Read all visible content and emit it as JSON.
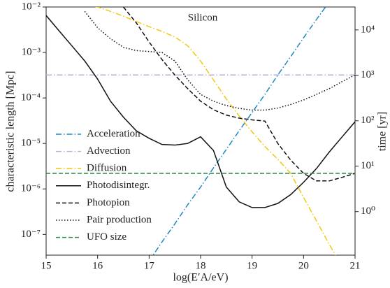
{
  "chart_data": {
    "type": "line",
    "annotation": "Silicon",
    "xlabel": "log(E′A/eV)",
    "ylabel": "characteristic length [Mpc]",
    "y2label": "time [yr]",
    "log_y": true,
    "legend": "lower left",
    "x": [
      15,
      15.25,
      15.5,
      15.75,
      16,
      16.25,
      16.5,
      16.75,
      17,
      17.25,
      17.5,
      17.75,
      18,
      18.25,
      18.5,
      18.75,
      19,
      19.25,
      19.5,
      19.75,
      20,
      20.25,
      20.5,
      20.75,
      21
    ],
    "xlim": [
      15,
      21
    ],
    "xticks": [
      15,
      16,
      17,
      18,
      19,
      20,
      21
    ],
    "ylim": [
      3.5e-08,
      0.01
    ],
    "yticks": [
      {
        "value": 1e-07,
        "label": "10⁻⁷"
      },
      {
        "value": 1e-06,
        "label": "10⁻⁶"
      },
      {
        "value": 1e-05,
        "label": "10⁻⁵"
      },
      {
        "value": 0.0001,
        "label": "10⁻⁴"
      },
      {
        "value": 0.001,
        "label": "10⁻³"
      },
      {
        "value": 0.01,
        "label": "10⁻²"
      }
    ],
    "y2lim": [
      0.11,
      32000
    ],
    "y2ticks": [
      {
        "value": 1,
        "label": "10⁰"
      },
      {
        "value": 10,
        "label": "10¹"
      },
      {
        "value": 100,
        "label": "10²"
      },
      {
        "value": 1000,
        "label": "10³"
      },
      {
        "value": 10000,
        "label": "10⁴"
      }
    ],
    "series": [
      {
        "name": "Acceleration",
        "color": "#1f88c4",
        "linestyle": "dashdot",
        "values": [
          null,
          null,
          null,
          null,
          null,
          null,
          null,
          null,
          2.6e-08,
          6.8e-08,
          1.7e-07,
          4.5e-07,
          1.1e-06,
          2.9e-06,
          7.4e-06,
          1.9e-05,
          4.8e-05,
          0.00012,
          0.00032,
          0.00081,
          0.0021,
          0.0053,
          0.013,
          null,
          null
        ]
      },
      {
        "name": "Advection",
        "color": "#b3b3d9",
        "linestyle": "dashdot",
        "values": [
          0.00032,
          0.00032,
          0.00032,
          0.00032,
          0.00032,
          0.00032,
          0.00032,
          0.00032,
          0.00032,
          0.00032,
          0.00032,
          0.00032,
          0.00032,
          0.00032,
          0.00032,
          0.00032,
          0.00032,
          0.00032,
          0.00032,
          0.00032,
          0.00032,
          0.00032,
          0.00032,
          0.00032,
          0.00032
        ]
      },
      {
        "name": "Diffusion",
        "color": "#f2c811",
        "linestyle": "dashdot",
        "values": [
          null,
          null,
          null,
          0.011,
          0.01,
          0.008,
          0.0063,
          0.0048,
          0.0037,
          0.0029,
          0.0022,
          0.0014,
          0.00065,
          0.00025,
          9.5e-05,
          4e-05,
          1.8e-05,
          8.5e-06,
          4.5e-06,
          2.2e-06,
          6.5e-07,
          2e-07,
          6e-08,
          2e-08,
          null
        ]
      },
      {
        "name": "Photodisintegr.",
        "color": "#111111",
        "linestyle": "solid",
        "values": [
          0.0065,
          0.003,
          0.0014,
          0.00065,
          0.00026,
          8.5e-05,
          3.8e-05,
          1.9e-05,
          1.3e-05,
          9.5e-06,
          9.2e-06,
          1e-05,
          1.4e-05,
          7e-06,
          1.1e-06,
          5.2e-07,
          3.9e-07,
          3.9e-07,
          4.8e-07,
          7.5e-07,
          1.4e-06,
          2.8e-06,
          6.5e-06,
          1.4e-05,
          3e-05
        ]
      },
      {
        "name": "Photopion",
        "color": "#111111",
        "linestyle": "dashed",
        "values": [
          null,
          null,
          null,
          null,
          null,
          null,
          0.01,
          0.0045,
          0.0017,
          0.0007,
          0.00032,
          0.00016,
          8.5e-05,
          5.5e-05,
          4.2e-05,
          3.6e-05,
          3.3e-05,
          3.1e-05,
          1e-05,
          4.3e-06,
          2.2e-06,
          1.5e-06,
          1.5e-06,
          1.8e-06,
          2.2e-06
        ]
      },
      {
        "name": "Pair production",
        "color": "#111111",
        "linestyle": "dotted",
        "values": [
          null,
          null,
          null,
          0.008,
          0.0035,
          0.002,
          0.0013,
          0.0011,
          0.00105,
          0.001,
          0.00065,
          0.00025,
          0.00012,
          8.5e-05,
          6.8e-05,
          5.9e-05,
          5.4e-05,
          5.4e-05,
          6e-05,
          7.2e-05,
          9e-05,
          0.00012,
          0.00016,
          0.00023,
          0.00032
        ]
      },
      {
        "name": "UFO size",
        "color": "#2a8a4a",
        "linestyle": "dashed",
        "values": [
          2.2e-06,
          2.2e-06,
          2.2e-06,
          2.2e-06,
          2.2e-06,
          2.2e-06,
          2.2e-06,
          2.2e-06,
          2.2e-06,
          2.2e-06,
          2.2e-06,
          2.2e-06,
          2.2e-06,
          2.2e-06,
          2.2e-06,
          2.2e-06,
          2.2e-06,
          2.2e-06,
          2.2e-06,
          2.2e-06,
          2.2e-06,
          2.2e-06,
          2.2e-06,
          2.2e-06,
          2.2e-06
        ]
      }
    ]
  }
}
